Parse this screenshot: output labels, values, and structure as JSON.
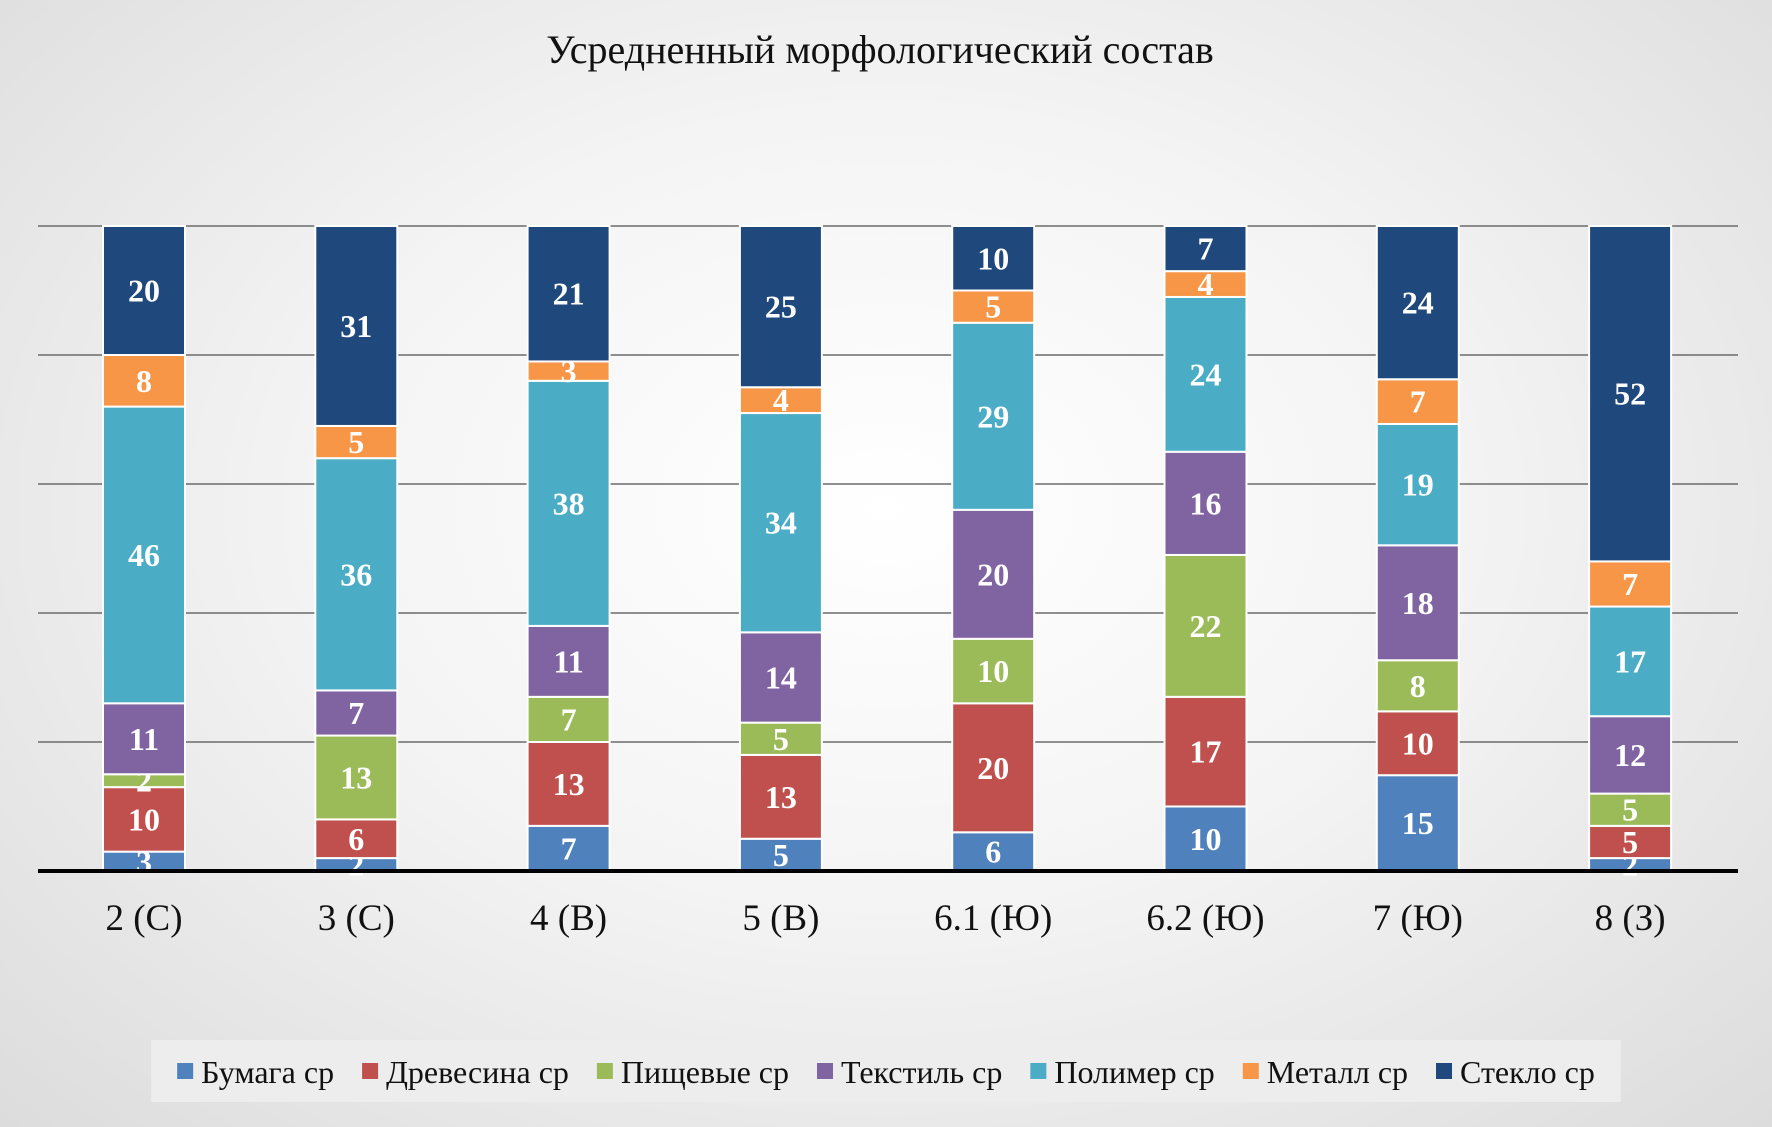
{
  "chart_data": {
    "type": "bar",
    "stacked": true,
    "percent_stacked": true,
    "title": "Усредненный морфологический состав",
    "xlabel": "",
    "ylabel": "",
    "ylim": [
      0,
      100
    ],
    "grid": true,
    "legend_position": "bottom",
    "categories": [
      "2 (С)",
      "3 (С)",
      "4 (В)",
      "5 (В)",
      "6.1 (Ю)",
      "6.2 (Ю)",
      "7 (Ю)",
      "8 (З)"
    ],
    "series": [
      {
        "name": "Бумага ср",
        "color": "#4f81bd",
        "values": [
          3,
          2,
          7,
          5,
          6,
          10,
          15,
          2
        ]
      },
      {
        "name": "Древесина ср",
        "color": "#c0504d",
        "values": [
          10,
          6,
          13,
          13,
          20,
          17,
          10,
          5
        ]
      },
      {
        "name": "Пищевые ср",
        "color": "#9bbb59",
        "values": [
          2,
          13,
          7,
          5,
          10,
          22,
          8,
          5
        ]
      },
      {
        "name": "Текстиль ср",
        "color": "#8064a2",
        "values": [
          11,
          7,
          11,
          14,
          20,
          16,
          18,
          12
        ]
      },
      {
        "name": "Полимер ср",
        "color": "#4bacc6",
        "values": [
          46,
          36,
          38,
          34,
          29,
          24,
          19,
          17
        ]
      },
      {
        "name": "Металл ср",
        "color": "#f79646",
        "values": [
          8,
          5,
          3,
          4,
          5,
          4,
          7,
          7
        ]
      },
      {
        "name": "Стекло ср",
        "color": "#1f497d",
        "values": [
          20,
          31,
          21,
          25,
          10,
          7,
          24,
          52
        ]
      }
    ]
  }
}
